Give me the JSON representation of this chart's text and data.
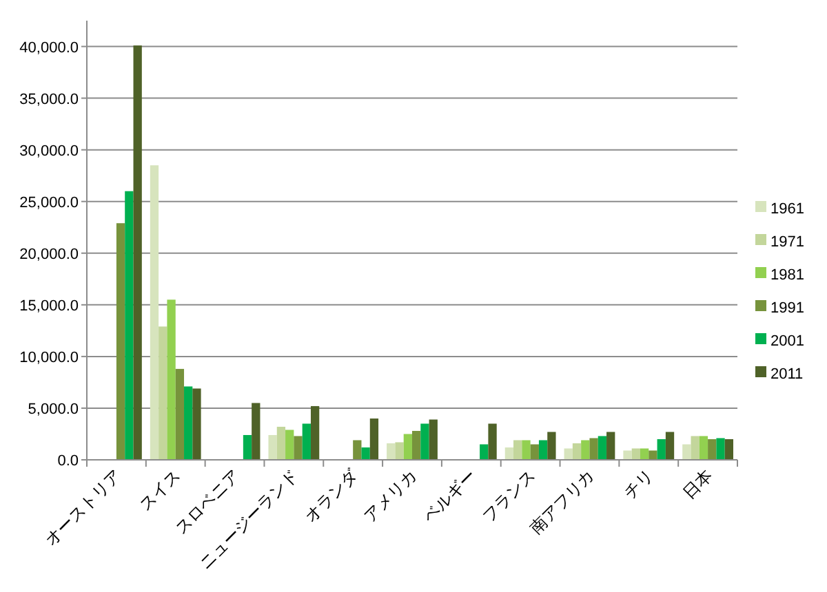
{
  "chart_data": {
    "type": "bar",
    "categories": [
      "オーストリア",
      "スイス",
      "スロベニア",
      "ニュージーランド",
      "オランダ",
      "アメリカ",
      "ベルギー",
      "フランス",
      "南アフリカ",
      "チリ",
      "日本"
    ],
    "series": [
      {
        "name": "1961",
        "color": "#d7e4bd",
        "values": [
          null,
          28500,
          null,
          2400,
          null,
          1600,
          null,
          1200,
          1100,
          900,
          1500
        ]
      },
      {
        "name": "1971",
        "color": "#c3d69b",
        "values": [
          null,
          12900,
          null,
          3200,
          null,
          1700,
          null,
          1900,
          1600,
          1100,
          2300
        ]
      },
      {
        "name": "1981",
        "color": "#92d050",
        "values": [
          null,
          15500,
          null,
          2900,
          null,
          2500,
          null,
          1900,
          1900,
          1100,
          2300
        ]
      },
      {
        "name": "1991",
        "color": "#77933c",
        "values": [
          22900,
          8800,
          null,
          2300,
          1900,
          2800,
          null,
          1500,
          2100,
          900,
          2000
        ]
      },
      {
        "name": "2001",
        "color": "#00b050",
        "values": [
          26000,
          7100,
          2400,
          3500,
          1200,
          3500,
          1500,
          1900,
          2300,
          2000,
          2100
        ]
      },
      {
        "name": "2011",
        "color": "#4f6228",
        "values": [
          40100,
          6900,
          5500,
          5200,
          4000,
          3900,
          3500,
          2700,
          2700,
          2700,
          2000
        ]
      }
    ],
    "ylim": [
      0,
      42500
    ],
    "yticks": [
      {
        "value": 0,
        "label": "0.0"
      },
      {
        "value": 5000,
        "label": "5,000.0"
      },
      {
        "value": 10000,
        "label": "10,000.0"
      },
      {
        "value": 15000,
        "label": "15,000.0"
      },
      {
        "value": 20000,
        "label": "20,000.0"
      },
      {
        "value": 25000,
        "label": "25,000.0"
      },
      {
        "value": 30000,
        "label": "30,000.0"
      },
      {
        "value": 35000,
        "label": "35,000.0"
      },
      {
        "value": 40000,
        "label": "40,000.0"
      }
    ],
    "grid": "y",
    "legend": "right"
  }
}
